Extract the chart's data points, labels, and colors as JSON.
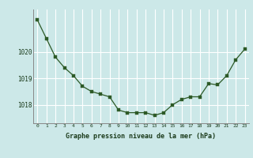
{
  "hours": [
    0,
    1,
    2,
    3,
    4,
    5,
    6,
    7,
    8,
    9,
    10,
    11,
    12,
    13,
    14,
    15,
    16,
    17,
    18,
    19,
    20,
    21,
    22,
    23
  ],
  "pressure": [
    1021.2,
    1020.5,
    1019.8,
    1019.4,
    1019.1,
    1018.7,
    1018.5,
    1018.4,
    1018.3,
    1017.8,
    1017.7,
    1017.7,
    1017.7,
    1017.6,
    1017.7,
    1018.0,
    1018.2,
    1018.3,
    1018.3,
    1018.8,
    1018.75,
    1019.1,
    1019.7,
    1020.1
  ],
  "line_color": "#2d5a27",
  "marker_color": "#2d5a27",
  "bg_color": "#cce8e8",
  "grid_color": "#ffffff",
  "title": "Graphe pression niveau de la mer (hPa)",
  "ylabel_ticks": [
    1018,
    1019,
    1020
  ],
  "ylim": [
    1017.3,
    1021.6
  ],
  "xlim": [
    -0.5,
    23.5
  ]
}
